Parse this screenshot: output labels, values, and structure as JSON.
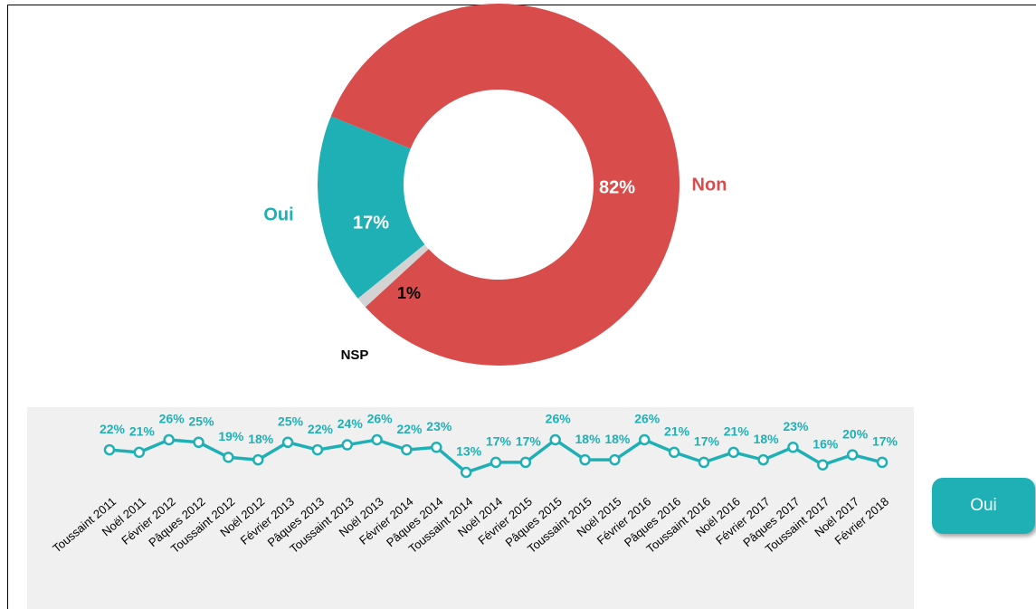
{
  "chart_data": [
    {
      "type": "donut",
      "categories": [
        "Oui",
        "Non",
        "NSP"
      ],
      "values": [
        17,
        82,
        1
      ],
      "value_labels": [
        "17%",
        "82%",
        "1%"
      ],
      "colors": [
        "#1fb0b5",
        "#d94c4c",
        "#d3d3d3"
      ]
    },
    {
      "type": "line",
      "categories": [
        "Toussaint 2011",
        "Noël 2011",
        "Février 2012",
        "Pâques 2012",
        "Toussaint 2012",
        "Noël 2012",
        "Février 2013",
        "Pâques 2013",
        "Toussaint 2013",
        "Noël 2013",
        "Février 2014",
        "Pâques 2014",
        "Toussaint 2014",
        "Noël 2014",
        "Février 2015",
        "Pâques 2015",
        "Toussaint 2015",
        "Noël 2015",
        "Février 2016",
        "Pâques 2016",
        "Toussaint 2016",
        "Noël 2016",
        "Février 2017",
        "Pâques 2017",
        "Toussaint 2017",
        "Noël 2017",
        "Février 2018"
      ],
      "series": [
        {
          "name": "Oui",
          "color": "#1fb0b5",
          "values": [
            22,
            21,
            26,
            25,
            19,
            18,
            25,
            22,
            24,
            26,
            22,
            23,
            13,
            17,
            17,
            26,
            18,
            18,
            26,
            21,
            17,
            21,
            18,
            23,
            16,
            20,
            17
          ],
          "value_labels": [
            "22%",
            "21%",
            "26%",
            "25%",
            "19%",
            "18%",
            "25%",
            "22%",
            "24%",
            "26%",
            "22%",
            "23%",
            "13%",
            "17%",
            "17%",
            "26%",
            "18%",
            "18%",
            "26%",
            "21%",
            "17%",
            "21%",
            "18%",
            "23%",
            "16%",
            "20%",
            "17%"
          ]
        }
      ]
    }
  ]
}
